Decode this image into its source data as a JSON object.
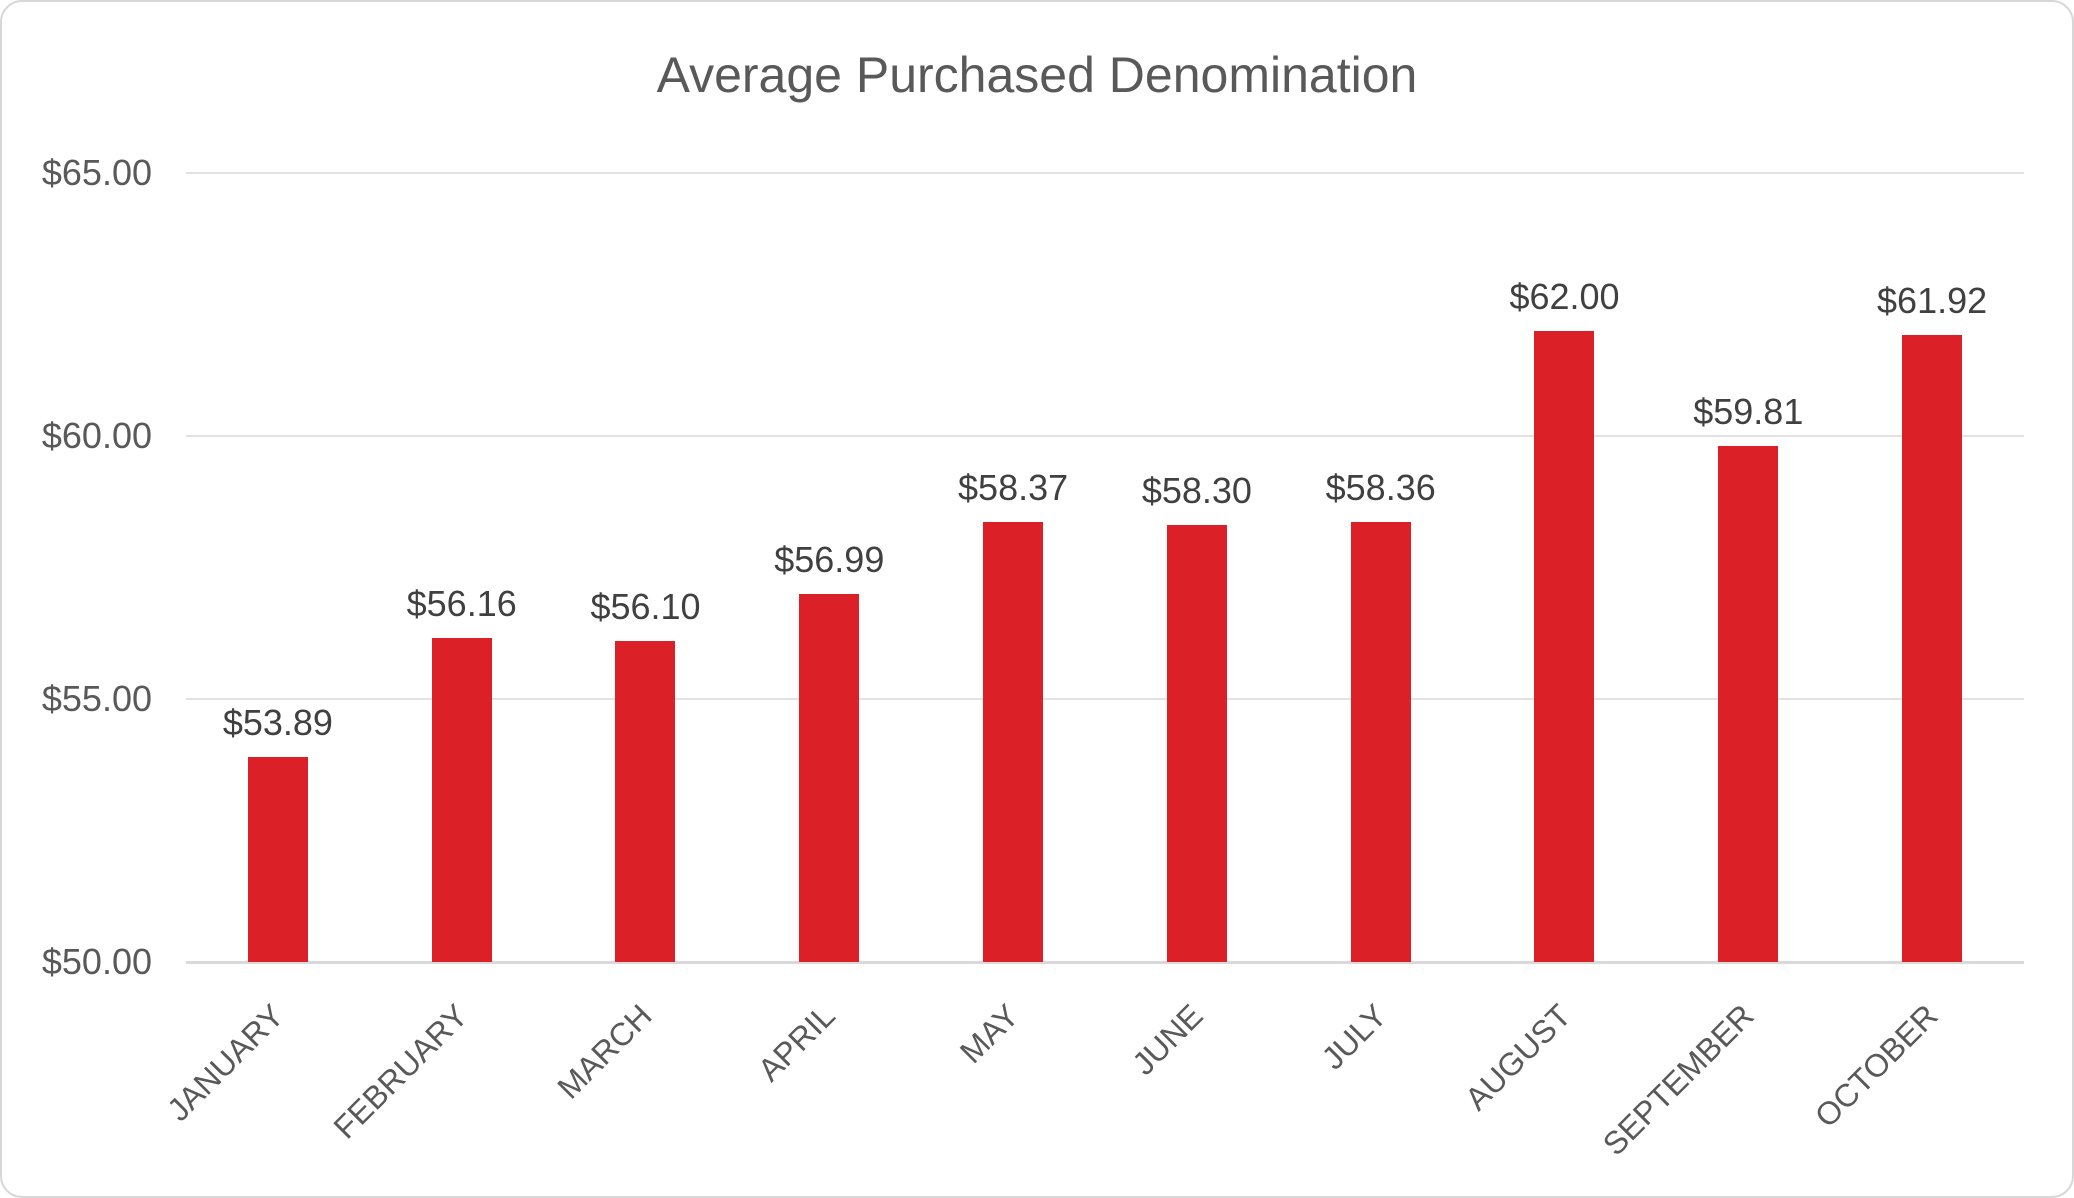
{
  "chart_data": {
    "type": "bar",
    "title": "Average Purchased Denomination",
    "categories": [
      "JANUARY",
      "FEBRUARY",
      "MARCH",
      "APRIL",
      "MAY",
      "JUNE",
      "JULY",
      "AUGUST",
      "SEPTEMBER",
      "OCTOBER"
    ],
    "values": [
      53.89,
      56.16,
      56.1,
      56.99,
      58.37,
      58.3,
      58.36,
      62.0,
      59.81,
      61.92
    ],
    "data_labels": [
      "$53.89",
      "$56.16",
      "$56.10",
      "$56.99",
      "$58.37",
      "$58.30",
      "$58.36",
      "$62.00",
      "$59.81",
      "$61.92"
    ],
    "xlabel": "",
    "ylabel": "",
    "ylim": [
      50,
      65
    ],
    "y_tick_values": [
      65,
      60,
      55,
      50
    ],
    "y_tick_labels": [
      "$65.00",
      "$60.00",
      "$55.00",
      "$50.00"
    ],
    "grid": true,
    "legend_position": "none",
    "colors": {
      "bar": "#db2127",
      "title_text": "#595959",
      "axis_text": "#595959",
      "data_label_text": "#404040",
      "gridline": "#e2e2e2",
      "axis_line": "#d9d9d9",
      "frame_border": "#d7d7d7",
      "background": "#ffffff"
    }
  }
}
